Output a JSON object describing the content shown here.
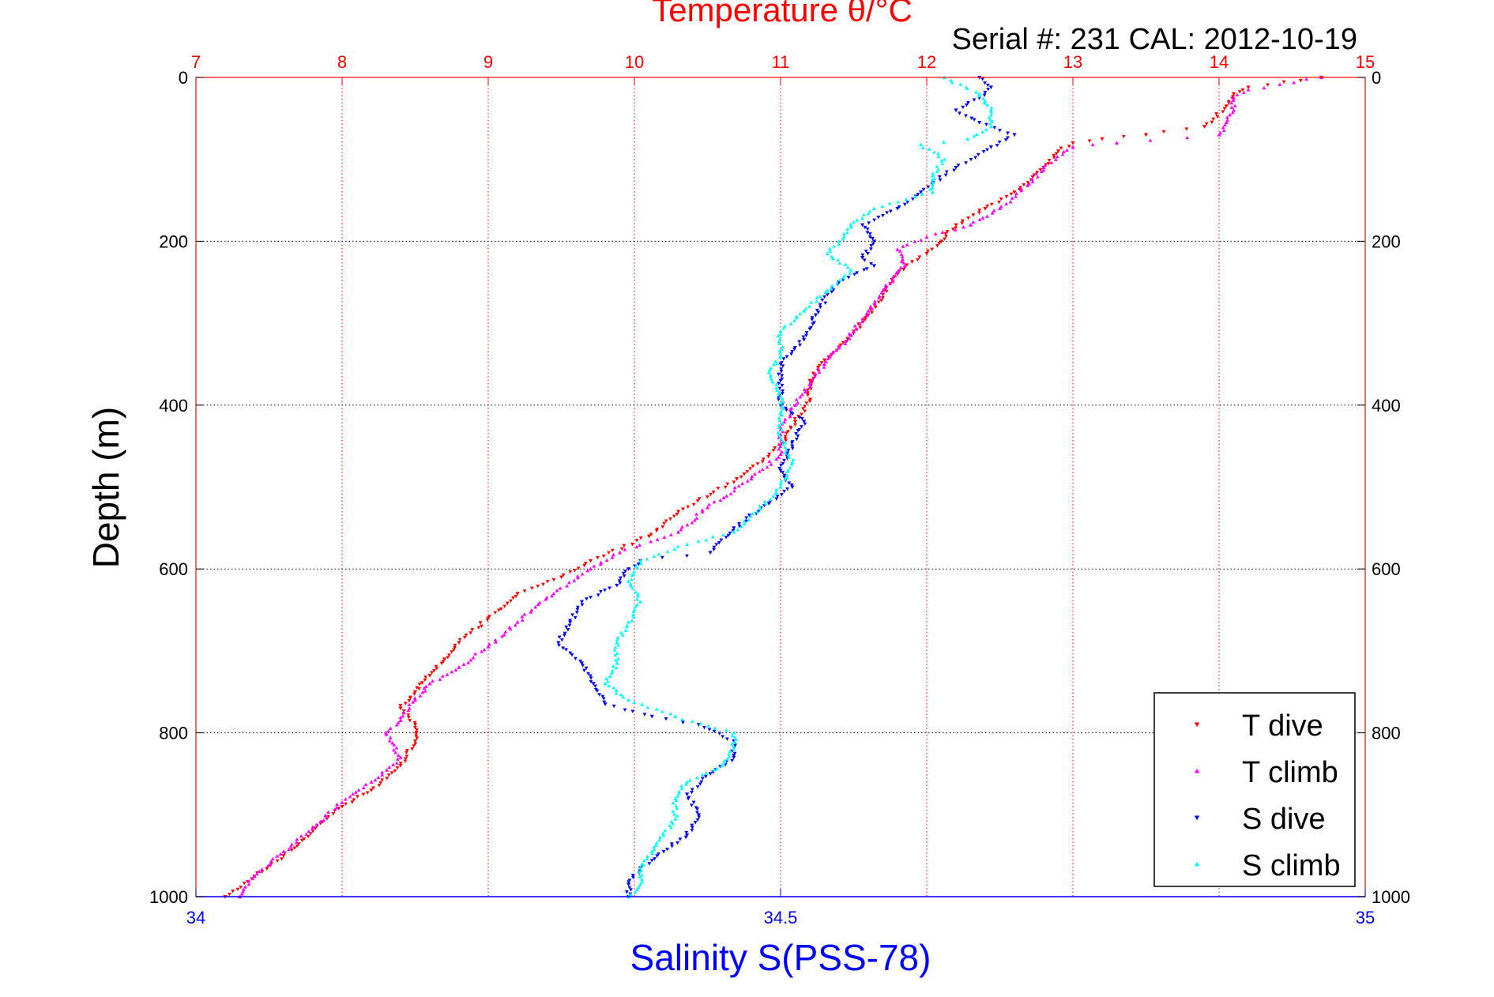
{
  "chart_data": {
    "type": "scatter",
    "title": "Temperature θ/°C",
    "subtitle": "Serial #: 231  CAL: 2012-10-19",
    "ylabel": "Depth (m)",
    "xlabel_bottom": "Salinity S(PSS-78)",
    "x_temperature_lim": [
      7,
      15
    ],
    "x_temperature_ticks": [
      "7",
      "8",
      "9",
      "10",
      "11",
      "12",
      "13",
      "14",
      "15"
    ],
    "x_salinity_lim": [
      34,
      35
    ],
    "x_salinity_ticks": [
      "34",
      "34.5",
      "35"
    ],
    "y_lim": [
      0,
      1000
    ],
    "y_reversed": true,
    "y_ticks": [
      "0",
      "200",
      "400",
      "600",
      "800",
      "1000"
    ],
    "grid": "dotted",
    "legend_placement": "bottom-right",
    "colors": {
      "temperature_axis": "#ff0000",
      "salinity_axis": "#0000ff",
      "grid_x": "#ff0000",
      "grid_y": "#000000"
    },
    "series": [
      {
        "name": "T dive",
        "axis": "temperature",
        "color": "#ff0000",
        "marker": "triangle-down",
        "points": [
          [
            14.7,
            0
          ],
          [
            14.2,
            12
          ],
          [
            14.1,
            20
          ],
          [
            14.05,
            35
          ],
          [
            13.9,
            60
          ],
          [
            13.5,
            70
          ],
          [
            13.2,
            75
          ],
          [
            13.0,
            80
          ],
          [
            12.9,
            90
          ],
          [
            12.8,
            110
          ],
          [
            12.6,
            140
          ],
          [
            12.4,
            160
          ],
          [
            12.2,
            180
          ],
          [
            12.1,
            200
          ],
          [
            12.0,
            215
          ],
          [
            11.9,
            225
          ],
          [
            11.8,
            240
          ],
          [
            11.7,
            265
          ],
          [
            11.6,
            290
          ],
          [
            11.5,
            310
          ],
          [
            11.4,
            330
          ],
          [
            11.3,
            345
          ],
          [
            11.2,
            370
          ],
          [
            11.2,
            395
          ],
          [
            11.1,
            420
          ],
          [
            11.0,
            450
          ],
          [
            10.7,
            490
          ],
          [
            10.3,
            530
          ],
          [
            10.1,
            560
          ],
          [
            9.7,
            590
          ],
          [
            9.5,
            610
          ],
          [
            9.2,
            630
          ],
          [
            9.0,
            660
          ],
          [
            8.8,
            690
          ],
          [
            8.7,
            710
          ],
          [
            8.6,
            730
          ],
          [
            8.5,
            750
          ],
          [
            8.4,
            770
          ],
          [
            8.5,
            790
          ],
          [
            8.5,
            810
          ],
          [
            8.4,
            840
          ],
          [
            8.2,
            870
          ],
          [
            8.0,
            890
          ],
          [
            7.8,
            920
          ],
          [
            7.6,
            950
          ],
          [
            7.4,
            975
          ],
          [
            7.2,
            1000
          ]
        ]
      },
      {
        "name": "T climb",
        "axis": "temperature",
        "color": "#ff00ff",
        "marker": "triangle-up",
        "points": [
          [
            14.7,
            0
          ],
          [
            14.2,
            15
          ],
          [
            14.1,
            25
          ],
          [
            14.1,
            40
          ],
          [
            14.05,
            55
          ],
          [
            14.0,
            70
          ],
          [
            13.3,
            80
          ],
          [
            13.0,
            85
          ],
          [
            12.8,
            110
          ],
          [
            12.7,
            130
          ],
          [
            12.5,
            160
          ],
          [
            12.3,
            180
          ],
          [
            12.0,
            195
          ],
          [
            11.8,
            210
          ],
          [
            11.85,
            230
          ],
          [
            11.7,
            260
          ],
          [
            11.6,
            285
          ],
          [
            11.5,
            310
          ],
          [
            11.4,
            330
          ],
          [
            11.3,
            350
          ],
          [
            11.2,
            375
          ],
          [
            11.1,
            400
          ],
          [
            11.0,
            430
          ],
          [
            11.0,
            460
          ],
          [
            10.8,
            490
          ],
          [
            10.5,
            525
          ],
          [
            10.3,
            555
          ],
          [
            9.9,
            580
          ],
          [
            9.7,
            600
          ],
          [
            9.4,
            635
          ],
          [
            9.2,
            665
          ],
          [
            9.0,
            695
          ],
          [
            8.8,
            720
          ],
          [
            8.6,
            740
          ],
          [
            8.5,
            760
          ],
          [
            8.4,
            785
          ],
          [
            8.3,
            800
          ],
          [
            8.4,
            830
          ],
          [
            8.2,
            860
          ],
          [
            8.0,
            885
          ],
          [
            7.8,
            915
          ],
          [
            7.6,
            945
          ],
          [
            7.4,
            975
          ],
          [
            7.3,
            1000
          ]
        ]
      },
      {
        "name": "S dive",
        "axis": "salinity",
        "color": "#0000ff",
        "marker": "triangle-down",
        "points": [
          [
            34.67,
            0
          ],
          [
            34.68,
            12
          ],
          [
            34.67,
            25
          ],
          [
            34.65,
            40
          ],
          [
            34.67,
            55
          ],
          [
            34.7,
            70
          ],
          [
            34.68,
            85
          ],
          [
            34.65,
            110
          ],
          [
            34.62,
            140
          ],
          [
            34.6,
            160
          ],
          [
            34.57,
            180
          ],
          [
            34.58,
            200
          ],
          [
            34.57,
            220
          ],
          [
            34.58,
            230
          ],
          [
            34.55,
            250
          ],
          [
            34.54,
            265
          ],
          [
            34.53,
            290
          ],
          [
            34.52,
            320
          ],
          [
            34.5,
            350
          ],
          [
            34.5,
            370
          ],
          [
            34.5,
            400
          ],
          [
            34.52,
            420
          ],
          [
            34.51,
            450
          ],
          [
            34.5,
            480
          ],
          [
            34.51,
            500
          ],
          [
            34.49,
            520
          ],
          [
            34.46,
            550
          ],
          [
            34.44,
            580
          ],
          [
            34.38,
            590
          ],
          [
            34.37,
            600
          ],
          [
            34.36,
            620
          ],
          [
            34.33,
            640
          ],
          [
            34.32,
            665
          ],
          [
            34.31,
            690
          ],
          [
            34.33,
            715
          ],
          [
            34.34,
            740
          ],
          [
            34.35,
            765
          ],
          [
            34.39,
            780
          ],
          [
            34.43,
            790
          ],
          [
            34.46,
            810
          ],
          [
            34.46,
            830
          ],
          [
            34.44,
            850
          ],
          [
            34.42,
            875
          ],
          [
            34.43,
            900
          ],
          [
            34.42,
            925
          ],
          [
            34.4,
            945
          ],
          [
            34.38,
            965
          ],
          [
            34.37,
            985
          ],
          [
            34.37,
            1000
          ]
        ]
      },
      {
        "name": "S climb",
        "axis": "salinity",
        "color": "#00ffff",
        "marker": "triangle-up",
        "points": [
          [
            34.64,
            0
          ],
          [
            34.67,
            20
          ],
          [
            34.68,
            40
          ],
          [
            34.68,
            60
          ],
          [
            34.66,
            75
          ],
          [
            34.62,
            82
          ],
          [
            34.64,
            100
          ],
          [
            34.63,
            120
          ],
          [
            34.63,
            140
          ],
          [
            34.58,
            160
          ],
          [
            34.56,
            180
          ],
          [
            34.55,
            200
          ],
          [
            34.54,
            215
          ],
          [
            34.56,
            235
          ],
          [
            34.54,
            260
          ],
          [
            34.52,
            285
          ],
          [
            34.5,
            310
          ],
          [
            34.5,
            340
          ],
          [
            34.49,
            360
          ],
          [
            34.5,
            390
          ],
          [
            34.5,
            410
          ],
          [
            34.5,
            440
          ],
          [
            34.51,
            470
          ],
          [
            34.5,
            500
          ],
          [
            34.48,
            530
          ],
          [
            34.46,
            555
          ],
          [
            34.42,
            570
          ],
          [
            34.38,
            590
          ],
          [
            34.37,
            615
          ],
          [
            34.38,
            640
          ],
          [
            34.37,
            665
          ],
          [
            34.36,
            690
          ],
          [
            34.36,
            715
          ],
          [
            34.35,
            740
          ],
          [
            34.37,
            760
          ],
          [
            34.41,
            780
          ],
          [
            34.46,
            800
          ],
          [
            34.46,
            820
          ],
          [
            34.45,
            840
          ],
          [
            34.42,
            860
          ],
          [
            34.41,
            880
          ],
          [
            34.41,
            905
          ],
          [
            34.4,
            925
          ],
          [
            34.39,
            945
          ],
          [
            34.38,
            965
          ],
          [
            34.38,
            985
          ],
          [
            34.37,
            1000
          ]
        ]
      }
    ]
  }
}
